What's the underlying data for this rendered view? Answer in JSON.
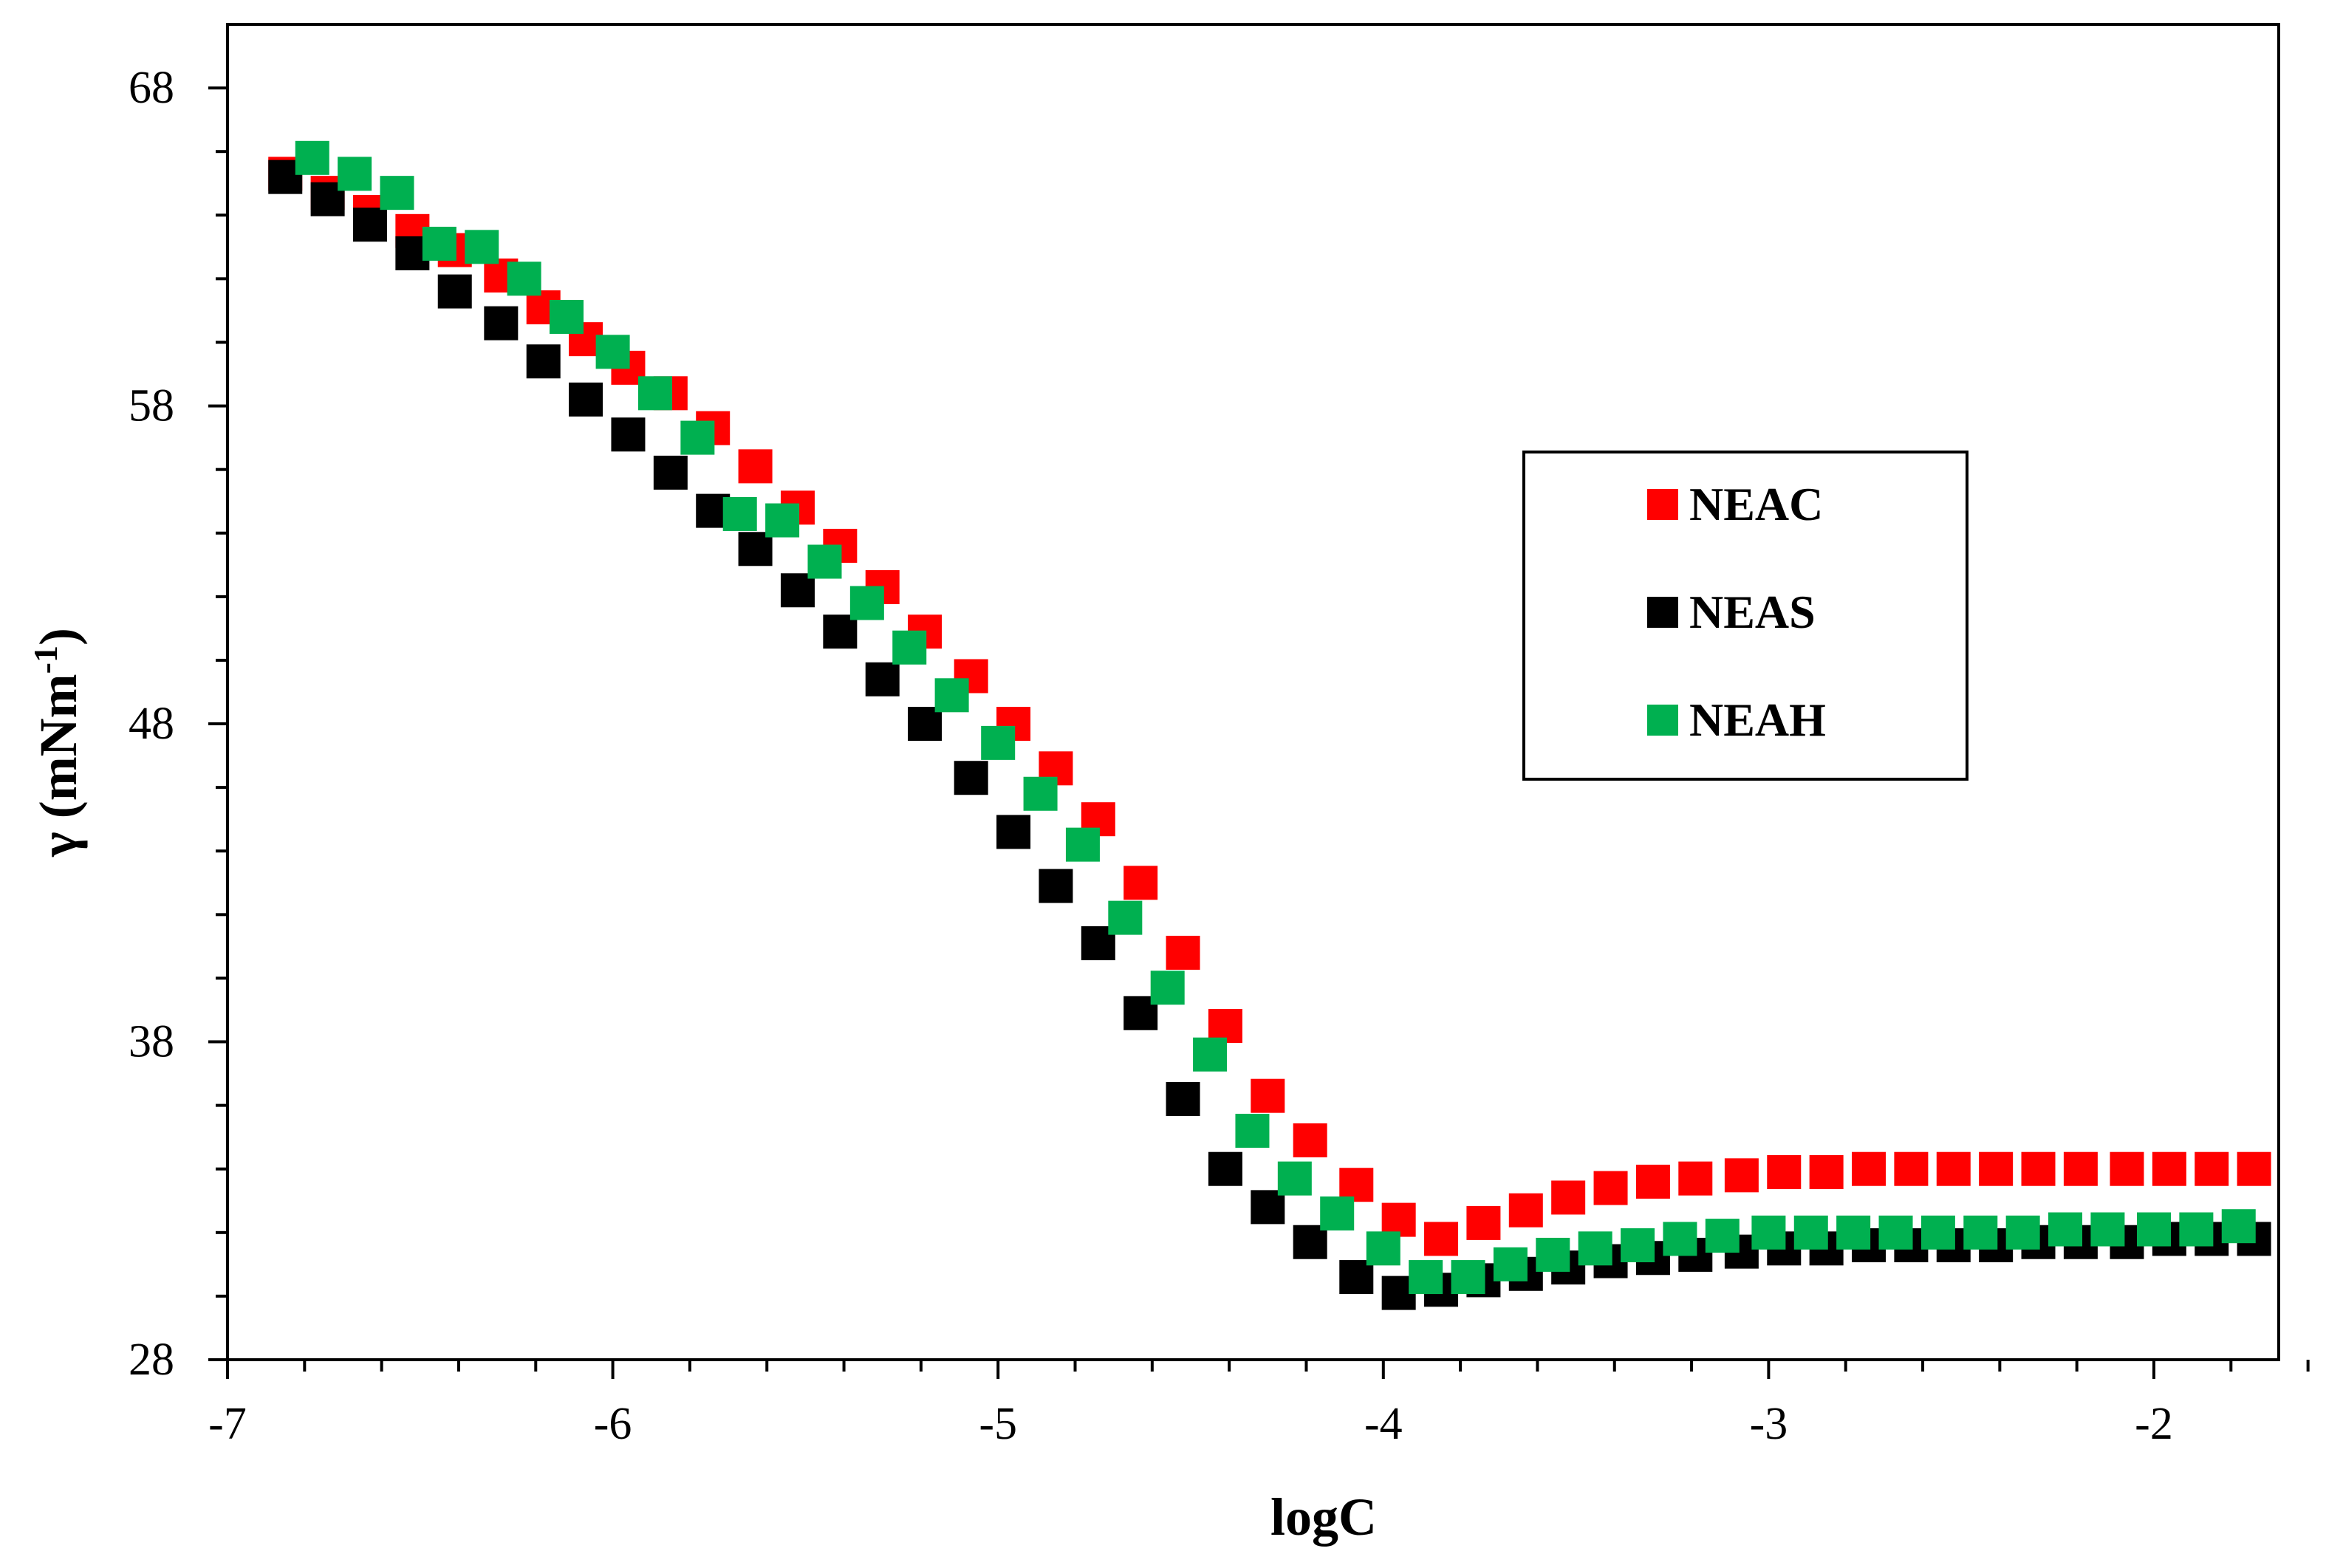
{
  "chart_data": {
    "type": "scatter",
    "title": "",
    "xlabel": "logC",
    "ylabel_main": "γ (mNm",
    "ylabel_sup": "-1",
    "ylabel_close": ")",
    "xlim": [
      -7,
      -1.5
    ],
    "ylim": [
      28,
      70
    ],
    "x_ticks": [
      -7,
      -6,
      -5,
      -4,
      -3,
      -2
    ],
    "x_tick_labels": [
      "-7",
      "-6",
      "-5",
      "-4",
      "-3",
      "-2"
    ],
    "x_minor_step": 0.2,
    "y_ticks": [
      28,
      38,
      48,
      58,
      68
    ],
    "y_tick_labels": [
      "28",
      "38",
      "48",
      "58",
      "68"
    ],
    "y_minor_step": 2,
    "grid": false,
    "legend_position": "right-middle",
    "series": [
      {
        "name": "NEAC",
        "color": "#ff0000",
        "marker": "square",
        "x": [
          -6.85,
          -6.74,
          -6.63,
          -6.52,
          -6.41,
          -6.29,
          -6.18,
          -6.07,
          -5.96,
          -5.85,
          -5.74,
          -5.63,
          -5.52,
          -5.41,
          -5.3,
          -5.19,
          -5.07,
          -4.96,
          -4.85,
          -4.74,
          -4.63,
          -4.52,
          -4.41,
          -4.3,
          -4.19,
          -4.07,
          -3.96,
          -3.85,
          -3.74,
          -3.63,
          -3.52,
          -3.41,
          -3.3,
          -3.19,
          -3.07,
          -2.96,
          -2.85,
          -2.74,
          -2.63,
          -2.52,
          -2.41,
          -2.3,
          -2.19,
          -2.07,
          -1.96,
          -1.85,
          -1.74
        ],
        "y": [
          65.3,
          64.7,
          64.1,
          63.5,
          62.9,
          62.1,
          61.1,
          60.1,
          59.2,
          58.4,
          57.3,
          56.1,
          54.8,
          53.6,
          52.3,
          50.9,
          49.5,
          48.0,
          46.6,
          45.0,
          43.0,
          40.8,
          38.5,
          36.3,
          34.9,
          33.5,
          32.4,
          31.8,
          32.3,
          32.7,
          33.1,
          33.4,
          33.6,
          33.7,
          33.8,
          33.9,
          33.9,
          34.0,
          34.0,
          34.0,
          34.0,
          34.0,
          34.0,
          34.0,
          34.0,
          34.0,
          34.0
        ]
      },
      {
        "name": "NEAS",
        "color": "#000000",
        "marker": "square",
        "x": [
          -6.85,
          -6.74,
          -6.63,
          -6.52,
          -6.41,
          -6.29,
          -6.18,
          -6.07,
          -5.96,
          -5.85,
          -5.74,
          -5.63,
          -5.52,
          -5.41,
          -5.3,
          -5.19,
          -5.07,
          -4.96,
          -4.85,
          -4.74,
          -4.63,
          -4.52,
          -4.41,
          -4.3,
          -4.19,
          -4.07,
          -3.96,
          -3.85,
          -3.74,
          -3.63,
          -3.52,
          -3.41,
          -3.3,
          -3.19,
          -3.07,
          -2.96,
          -2.85,
          -2.74,
          -2.63,
          -2.52,
          -2.41,
          -2.3,
          -2.19,
          -2.07,
          -1.96,
          -1.85,
          -1.74
        ],
        "y": [
          65.2,
          64.5,
          63.7,
          62.8,
          61.6,
          60.6,
          59.4,
          58.2,
          57.1,
          55.9,
          54.7,
          53.5,
          52.2,
          50.9,
          49.4,
          48.0,
          46.3,
          44.6,
          42.9,
          41.1,
          38.9,
          36.2,
          34.0,
          32.8,
          31.7,
          30.6,
          30.1,
          30.2,
          30.5,
          30.7,
          30.9,
          31.1,
          31.2,
          31.3,
          31.4,
          31.5,
          31.5,
          31.6,
          31.6,
          31.6,
          31.6,
          31.7,
          31.7,
          31.7,
          31.8,
          31.8,
          31.8
        ]
      },
      {
        "name": "NEAH",
        "color": "#00b050",
        "marker": "square",
        "x": [
          -6.78,
          -6.67,
          -6.56,
          -6.45,
          -6.34,
          -6.23,
          -6.12,
          -6.0,
          -5.89,
          -5.78,
          -5.67,
          -5.56,
          -5.45,
          -5.34,
          -5.23,
          -5.12,
          -5.0,
          -4.89,
          -4.78,
          -4.67,
          -4.56,
          -4.45,
          -4.34,
          -4.23,
          -4.12,
          -4.0,
          -3.89,
          -3.78,
          -3.67,
          -3.56,
          -3.45,
          -3.34,
          -3.23,
          -3.12,
          -3.0,
          -2.89,
          -2.78,
          -2.67,
          -2.56,
          -2.45,
          -2.34,
          -2.23,
          -2.12,
          -2.0,
          -1.89,
          -1.78
        ],
        "y": [
          65.8,
          65.3,
          64.7,
          63.1,
          63.0,
          62.0,
          60.8,
          59.7,
          58.4,
          57.0,
          54.6,
          54.4,
          53.1,
          51.8,
          50.4,
          48.9,
          47.4,
          45.8,
          44.2,
          41.9,
          39.7,
          37.6,
          35.2,
          33.7,
          32.6,
          31.5,
          30.6,
          30.6,
          31.0,
          31.3,
          31.5,
          31.6,
          31.8,
          31.9,
          32.0,
          32.0,
          32.0,
          32.0,
          32.0,
          32.0,
          32.0,
          32.1,
          32.1,
          32.1,
          32.1,
          32.2
        ]
      }
    ]
  }
}
